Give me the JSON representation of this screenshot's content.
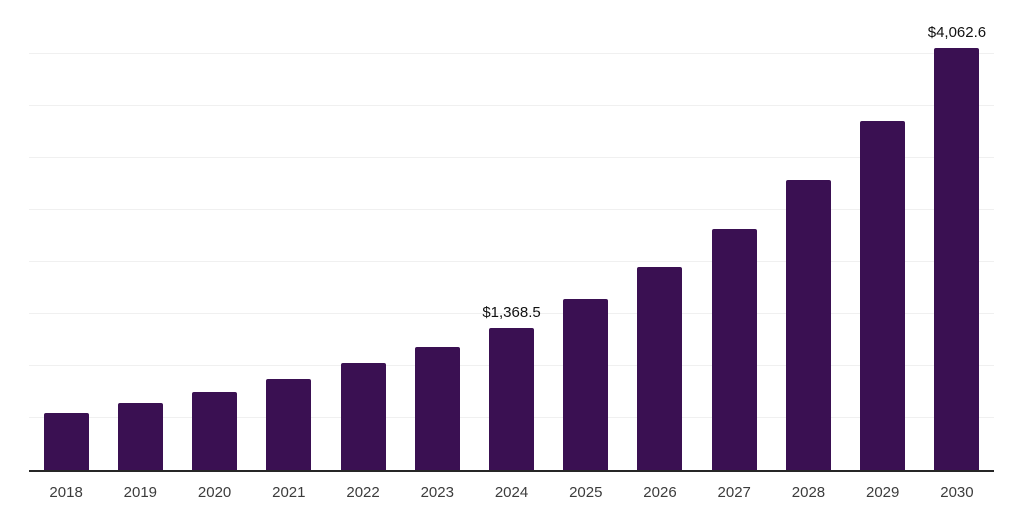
{
  "chart_data": {
    "type": "bar",
    "title": "",
    "xlabel": "",
    "ylabel": "",
    "categories": [
      "2018",
      "2019",
      "2020",
      "2021",
      "2022",
      "2023",
      "2024",
      "2025",
      "2026",
      "2027",
      "2028",
      "2029",
      "2030"
    ],
    "values": [
      550,
      645,
      755,
      880,
      1030,
      1185,
      1368.5,
      1645,
      1950,
      2320,
      2790,
      3360,
      4062.6
    ],
    "value_labels": {
      "2024": "$1,368.5",
      "2030": "$4,062.6"
    },
    "ylim": [
      0,
      4520
    ],
    "gridline_step": 500,
    "grid": "horizontal-only",
    "legend": "none",
    "y_tick_labels": "none"
  },
  "style": {
    "bar_color": "#3A1052",
    "gridline_color": "#F0F0F0",
    "axis_color": "#262626",
    "tick_label_color": "#3C3C3C",
    "value_label_color": "#111111",
    "background": "#FFFFFF"
  }
}
